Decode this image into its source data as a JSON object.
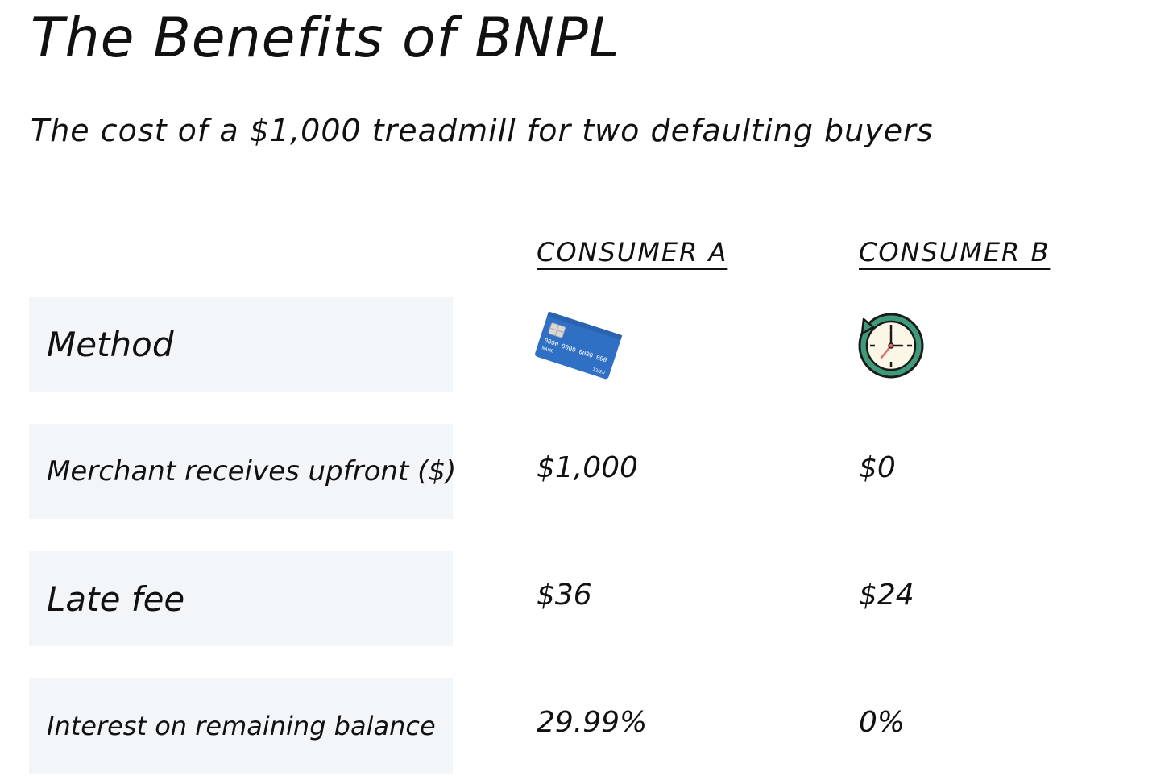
{
  "page": {
    "title": "The Benefits of BNPL",
    "subtitle": "The cost of a $1,000 treadmill for two defaulting buyers"
  },
  "table": {
    "columns": [
      "CONSUMER A",
      "CONSUMER B"
    ],
    "rows": [
      {
        "label": "Method",
        "consumer_a_icon": "credit-card-icon",
        "consumer_b_icon": "clock-icon"
      },
      {
        "label": "Merchant receives upfront ($)",
        "consumer_a": "$1,000",
        "consumer_b": "$0"
      },
      {
        "label": "Late fee",
        "consumer_a": "$36",
        "consumer_b": "$24"
      },
      {
        "label": "Interest on remaining balance",
        "consumer_a": "29.99%",
        "consumer_b": "0%"
      }
    ],
    "card_text": {
      "number": "0000 0000 0000 000",
      "name": "NAME",
      "expiry": "12/20"
    }
  },
  "colors": {
    "row_background": "#f3f6f9",
    "card_blue": "#2f6fc4",
    "clock_green": "#3e9a78",
    "clock_face": "#fbf6e6"
  }
}
